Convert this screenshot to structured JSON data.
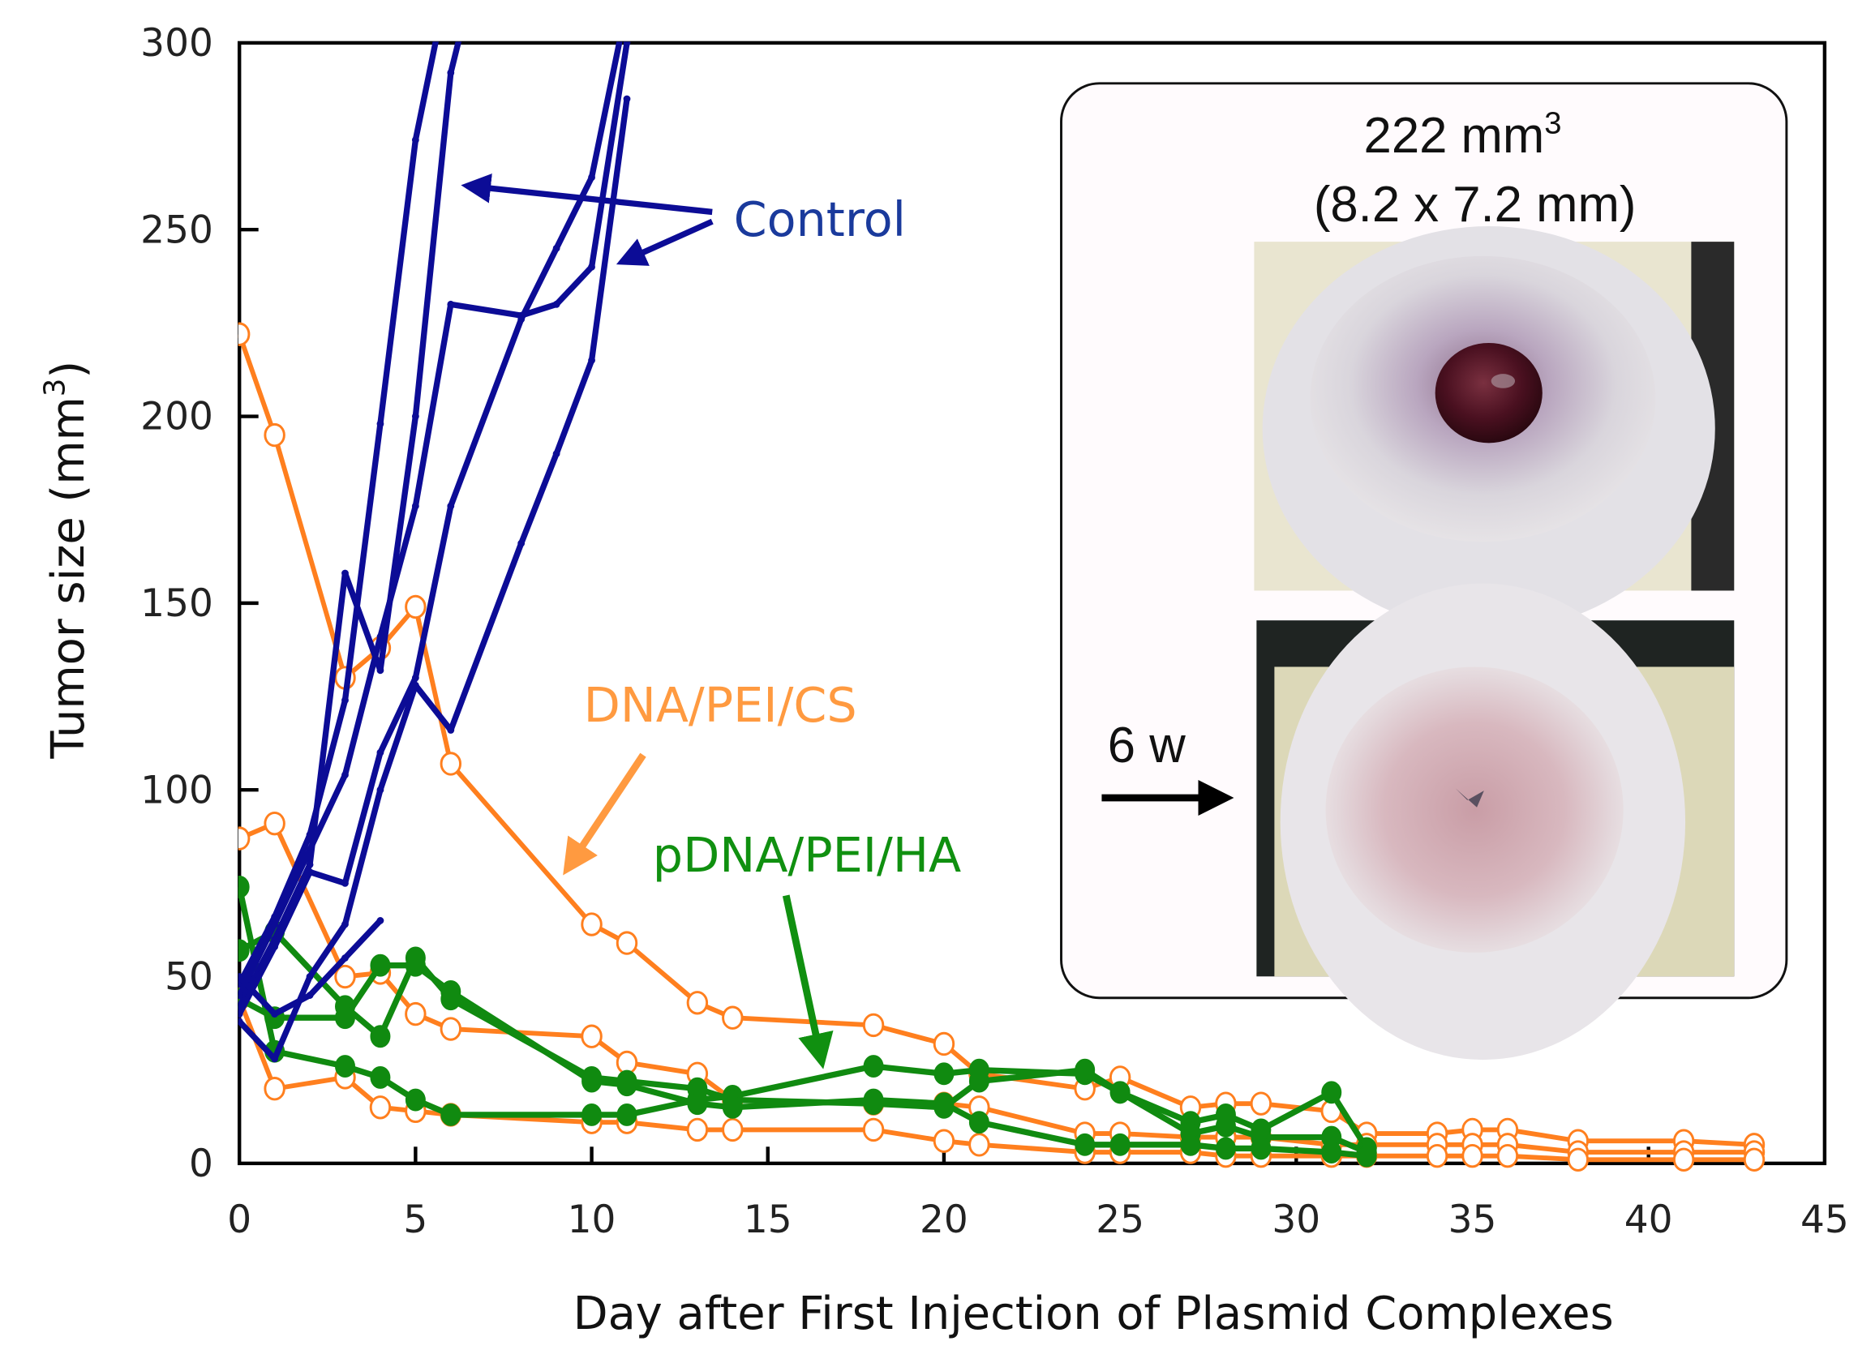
{
  "chart_data": {
    "type": "line",
    "title": "",
    "xlabel": "Day after First Injection of Plasmid Complexes",
    "ylabel": "Tumor size  (mm",
    "ylabel_superscript": "3",
    "ylabel_close": ")",
    "xlim": [
      0,
      45
    ],
    "ylim": [
      0,
      300
    ],
    "x_ticks": [
      0,
      5,
      10,
      15,
      20,
      25,
      30,
      35,
      40,
      45
    ],
    "x_tick_labels": [
      "0",
      "5",
      "10",
      "15",
      "20",
      "25",
      "30",
      "35",
      "40",
      "45"
    ],
    "y_ticks": [
      0,
      50,
      100,
      150,
      200,
      250,
      300
    ],
    "y_tick_labels": [
      "0",
      "50",
      "100",
      "150",
      "200",
      "250",
      "300"
    ],
    "grid": false,
    "colors": {
      "control": "#0c0c96",
      "dna_pei_cs": "#ff7f1e",
      "pdna_pei_ha": "#108a10",
      "axis": "#000000"
    },
    "annotations": [
      {
        "text": "Control",
        "color": "#1a3a9c",
        "points_to": "Control curves"
      },
      {
        "text": "DNA/PEI/CS",
        "color": "#ff9a40",
        "points_to": "DNA/PEI/CS curves"
      },
      {
        "text": "pDNA/PEI/HA",
        "color": "#109010",
        "points_to": "pDNA/PEI/HA curves"
      }
    ],
    "series": [
      {
        "name": "Control 1",
        "group": "control",
        "x": [
          0,
          1,
          2,
          3,
          4,
          5,
          6
        ],
        "y": [
          48,
          66,
          88,
          124,
          198,
          274,
          320
        ]
      },
      {
        "name": "Control 2",
        "group": "control",
        "x": [
          0,
          1,
          2,
          3,
          4,
          5,
          6,
          7
        ],
        "y": [
          42,
          60,
          80,
          158,
          132,
          200,
          292,
          330
        ]
      },
      {
        "name": "Control 3",
        "group": "control",
        "x": [
          0,
          1,
          2,
          3,
          4,
          5,
          6,
          8,
          9,
          10,
          11
        ],
        "y": [
          45,
          64,
          84,
          104,
          141,
          176,
          230,
          227,
          230,
          240,
          300
        ]
      },
      {
        "name": "Control 4",
        "group": "control",
        "x": [
          0,
          1,
          2,
          3,
          4,
          5,
          6,
          8,
          9,
          10,
          11
        ],
        "y": [
          40,
          58,
          78,
          75,
          110,
          130,
          176,
          226,
          245,
          264,
          310
        ]
      },
      {
        "name": "Control 5",
        "group": "control",
        "x": [
          0,
          1,
          2,
          3,
          4,
          5,
          6,
          8,
          9,
          10,
          11
        ],
        "y": [
          38,
          28,
          50,
          64,
          100,
          128,
          116,
          166,
          190,
          215,
          285
        ]
      },
      {
        "name": "Control 6",
        "group": "control",
        "x": [
          0,
          1,
          2,
          3,
          4
        ],
        "y": [
          50,
          40,
          45,
          55,
          65
        ]
      },
      {
        "name": "DNA/PEI/CS 1",
        "group": "dna_pei_cs",
        "x": [
          0,
          1,
          3,
          4,
          5,
          6,
          10,
          11,
          13,
          14,
          18,
          20,
          21,
          24,
          25,
          27,
          28,
          29,
          31,
          32,
          34,
          35,
          36,
          38,
          41,
          43
        ],
        "y": [
          222,
          195,
          130,
          138,
          149,
          107,
          64,
          59,
          43,
          39,
          37,
          32,
          24,
          20,
          23,
          15,
          16,
          16,
          14,
          8,
          8,
          9,
          9,
          6,
          6,
          5
        ]
      },
      {
        "name": "DNA/PEI/CS 2",
        "group": "dna_pei_cs",
        "x": [
          0,
          1,
          3,
          4,
          5,
          6,
          10,
          11,
          13,
          14,
          18,
          20,
          21,
          24,
          25,
          27,
          28,
          29,
          31,
          32,
          34,
          35,
          36,
          38,
          41,
          43
        ],
        "y": [
          87,
          91,
          50,
          51,
          40,
          36,
          34,
          27,
          24,
          17,
          16,
          16,
          15,
          8,
          8,
          7,
          7,
          7,
          5,
          5,
          5,
          5,
          5,
          3,
          3,
          3
        ]
      },
      {
        "name": "DNA/PEI/CS 3",
        "group": "dna_pei_cs",
        "x": [
          0,
          1,
          3,
          4,
          5,
          6,
          10,
          11,
          13,
          14,
          18,
          20,
          21,
          24,
          25,
          27,
          28,
          29,
          31,
          32,
          34,
          35,
          36,
          38,
          41,
          43
        ],
        "y": [
          44,
          20,
          23,
          15,
          14,
          13,
          11,
          11,
          9,
          9,
          9,
          6,
          5,
          3,
          3,
          3,
          2,
          2,
          2,
          2,
          2,
          2,
          2,
          1,
          1,
          1
        ]
      },
      {
        "name": "pDNA/PEI/HA 1",
        "group": "pdna_pei_ha",
        "x": [
          0,
          1,
          3,
          4,
          5,
          6,
          10,
          11,
          13,
          14,
          18,
          20,
          21,
          24,
          25,
          27,
          28,
          29,
          31,
          32
        ],
        "y": [
          74,
          30,
          26,
          23,
          17,
          13,
          13,
          13,
          17,
          18,
          26,
          24,
          25,
          24,
          19,
          11,
          13,
          9,
          19,
          4
        ]
      },
      {
        "name": "pDNA/PEI/HA 2",
        "group": "pdna_pei_ha",
        "x": [
          0,
          1,
          3,
          4,
          5,
          6,
          10,
          11,
          13,
          14,
          18,
          20,
          21,
          24,
          25,
          27,
          28,
          29,
          31,
          32
        ],
        "y": [
          57,
          62,
          42,
          34,
          55,
          44,
          23,
          22,
          20,
          17,
          16,
          15,
          22,
          25,
          19,
          8,
          10,
          7,
          7,
          3
        ]
      },
      {
        "name": "pDNA/PEI/HA 3",
        "group": "pdna_pei_ha",
        "x": [
          0,
          1,
          3,
          4,
          5,
          6,
          10,
          11,
          13,
          14,
          18,
          20,
          21,
          24,
          25,
          27,
          28,
          29,
          31,
          32
        ],
        "y": [
          44,
          39,
          39,
          53,
          53,
          46,
          22,
          21,
          16,
          15,
          17,
          16,
          11,
          5,
          5,
          5,
          4,
          4,
          3,
          2
        ]
      }
    ]
  },
  "inset": {
    "volume_value": "222 mm",
    "volume_superscript": "3",
    "dimensions": "(8.2 x 7.2 mm)",
    "time_label": "6 w",
    "photo_before": "tumor-photo-before",
    "photo_after": "tumor-photo-after-6-weeks"
  }
}
